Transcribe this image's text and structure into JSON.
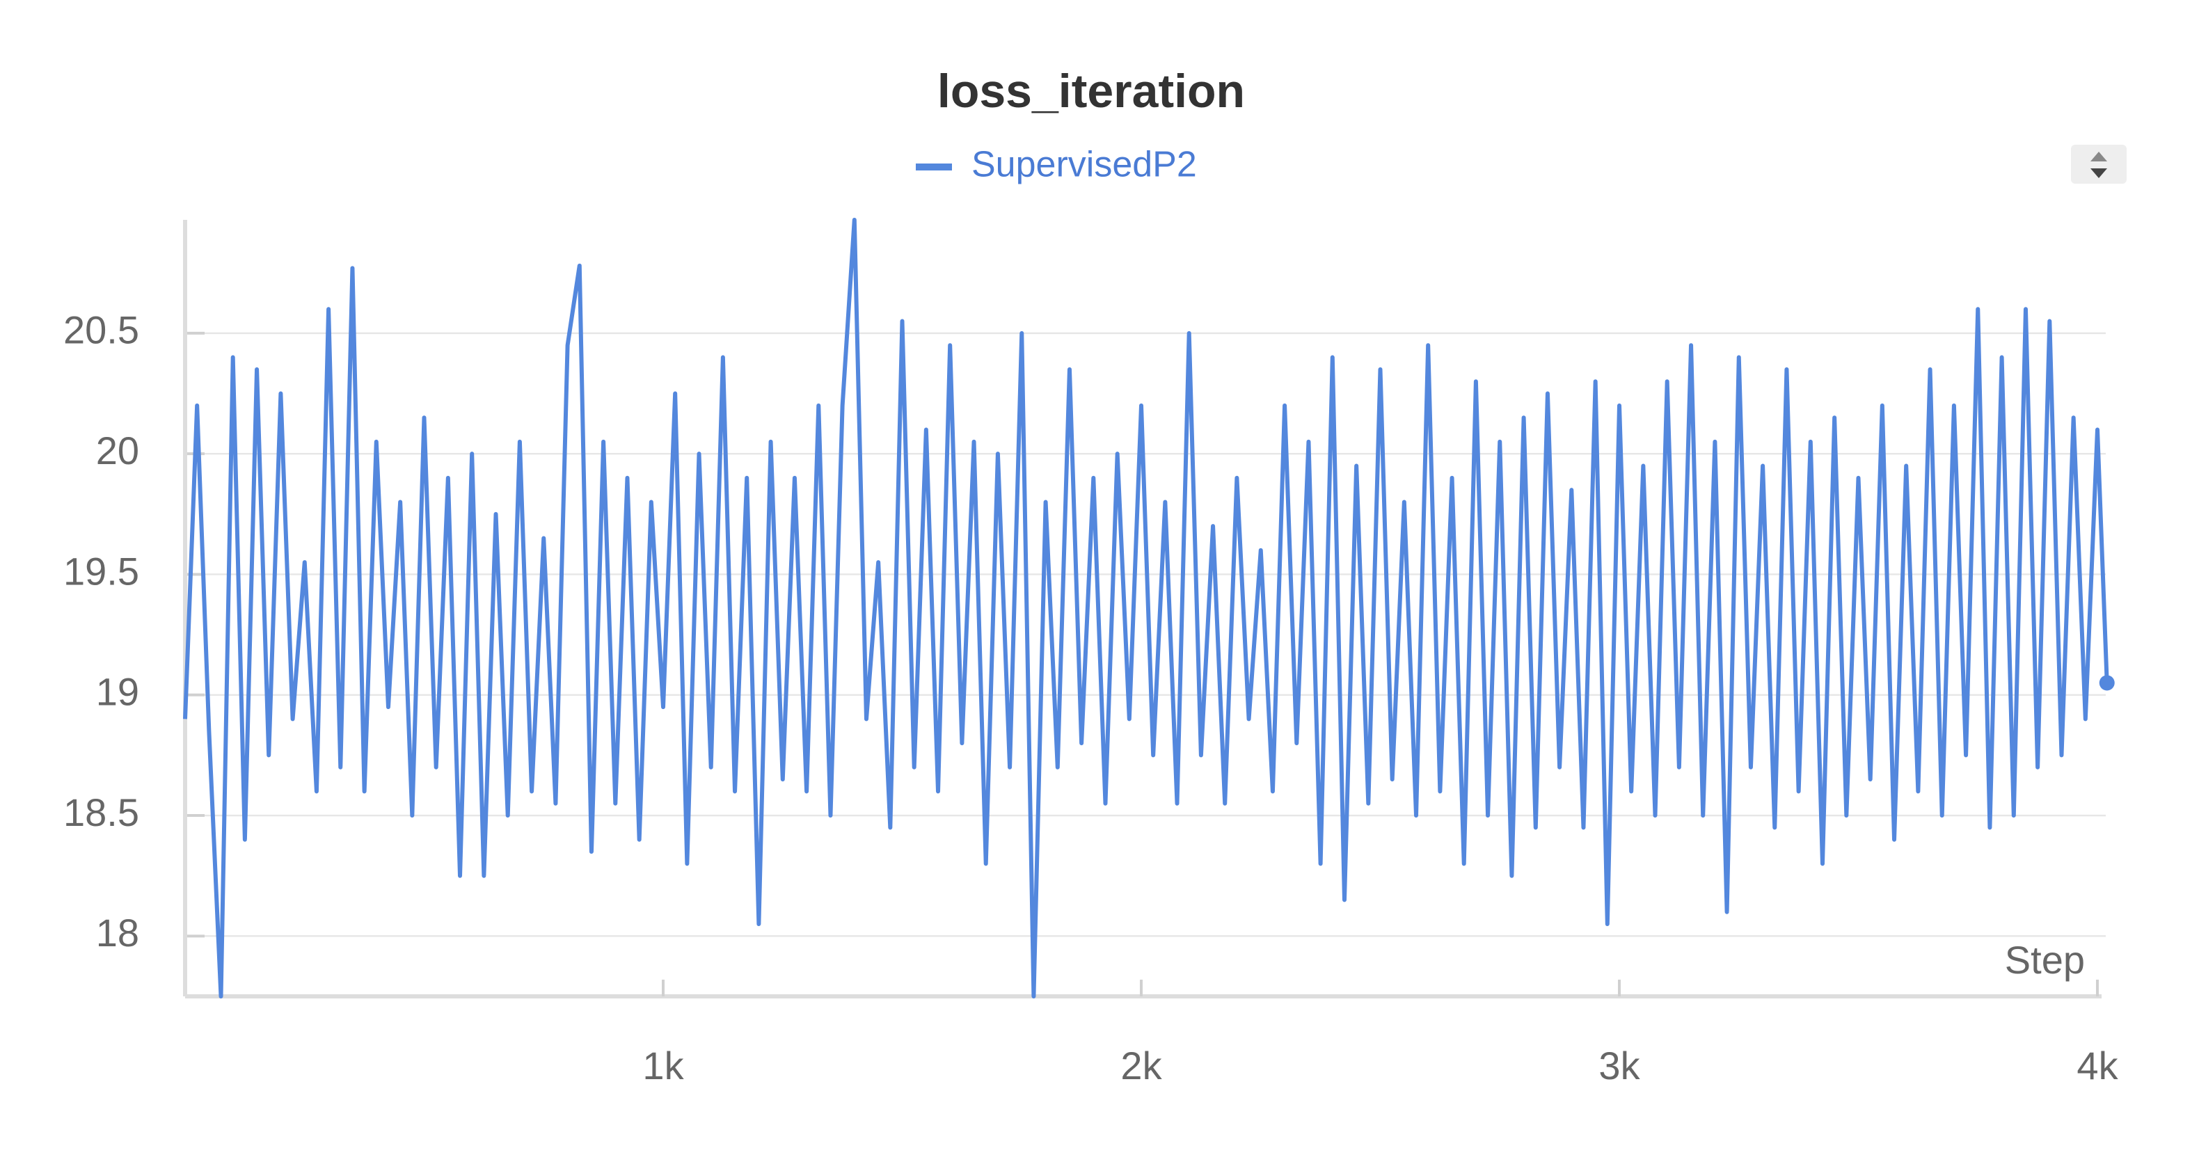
{
  "chart_data": {
    "type": "line",
    "title": "loss_iteration",
    "x_label": "Step",
    "x": [
      0,
      25,
      50,
      75,
      100,
      125,
      150,
      175,
      200,
      225,
      250,
      275,
      300,
      325,
      350,
      375,
      400,
      425,
      450,
      475,
      500,
      525,
      550,
      575,
      600,
      625,
      650,
      675,
      700,
      725,
      750,
      775,
      800,
      825,
      850,
      875,
      900,
      925,
      950,
      975,
      1000,
      1025,
      1050,
      1075,
      1100,
      1125,
      1150,
      1175,
      1200,
      1225,
      1250,
      1275,
      1300,
      1325,
      1350,
      1375,
      1400,
      1425,
      1450,
      1475,
      1500,
      1525,
      1550,
      1575,
      1600,
      1625,
      1650,
      1675,
      1700,
      1725,
      1750,
      1775,
      1800,
      1825,
      1850,
      1875,
      1900,
      1925,
      1950,
      1975,
      2000,
      2025,
      2050,
      2075,
      2100,
      2125,
      2150,
      2175,
      2200,
      2225,
      2250,
      2275,
      2300,
      2325,
      2350,
      2375,
      2400,
      2425,
      2450,
      2475,
      2500,
      2525,
      2550,
      2575,
      2600,
      2625,
      2650,
      2675,
      2700,
      2725,
      2750,
      2775,
      2800,
      2825,
      2850,
      2875,
      2900,
      2925,
      2950,
      2975,
      3000,
      3025,
      3050,
      3075,
      3100,
      3125,
      3150,
      3175,
      3200,
      3225,
      3250,
      3275,
      3300,
      3325,
      3350,
      3375,
      3400,
      3425,
      3450,
      3475,
      3500,
      3525,
      3550,
      3575,
      3600,
      3625,
      3650,
      3675,
      3700,
      3725,
      3750,
      3775,
      3800,
      3825,
      3850,
      3875,
      3900,
      3925,
      3950,
      3975,
      4000,
      4020
    ],
    "series": [
      {
        "name": "SupervisedP2",
        "color": "#5387dd",
        "values": [
          18.9,
          20.2,
          18.85,
          17.75,
          20.4,
          18.4,
          20.35,
          18.75,
          20.25,
          18.9,
          19.55,
          18.6,
          20.6,
          18.7,
          20.77,
          18.6,
          20.05,
          18.95,
          19.8,
          18.5,
          20.15,
          18.7,
          19.9,
          18.25,
          20.0,
          18.25,
          19.75,
          18.5,
          20.05,
          18.6,
          19.65,
          18.55,
          20.45,
          20.78,
          18.35,
          20.05,
          18.55,
          19.9,
          18.4,
          19.8,
          18.95,
          20.25,
          18.3,
          20.0,
          18.7,
          20.4,
          18.6,
          19.9,
          18.05,
          20.05,
          18.65,
          19.9,
          18.6,
          20.2,
          18.5,
          20.2,
          20.97,
          18.9,
          19.55,
          18.45,
          20.55,
          18.7,
          20.1,
          18.6,
          20.45,
          18.8,
          20.05,
          18.3,
          20.0,
          18.7,
          20.5,
          17.75,
          19.8,
          18.7,
          20.35,
          18.8,
          19.9,
          18.55,
          20.0,
          18.9,
          20.2,
          18.75,
          19.8,
          18.55,
          20.5,
          18.75,
          19.7,
          18.55,
          19.9,
          18.9,
          19.6,
          18.6,
          20.2,
          18.8,
          20.05,
          18.3,
          20.4,
          18.15,
          19.95,
          18.55,
          20.35,
          18.65,
          19.8,
          18.5,
          20.45,
          18.6,
          19.9,
          18.3,
          20.3,
          18.5,
          20.05,
          18.25,
          20.15,
          18.45,
          20.25,
          18.7,
          19.85,
          18.45,
          20.3,
          18.05,
          20.2,
          18.6,
          19.95,
          18.5,
          20.3,
          18.7,
          20.45,
          18.5,
          20.05,
          18.1,
          20.4,
          18.7,
          19.95,
          18.45,
          20.35,
          18.6,
          20.05,
          18.3,
          20.15,
          18.5,
          19.9,
          18.65,
          20.2,
          18.4,
          19.95,
          18.6,
          20.35,
          18.5,
          20.2,
          18.75,
          20.6,
          18.45,
          20.4,
          18.5,
          20.6,
          18.7,
          20.55,
          18.75,
          20.15,
          18.9,
          20.1,
          19.05
        ]
      }
    ],
    "xlim": [
      0,
      4030
    ],
    "ylim": [
      17.75,
      20.97
    ],
    "xticks": [
      {
        "value": 1000,
        "label": "1k"
      },
      {
        "value": 2000,
        "label": "2k"
      },
      {
        "value": 3000,
        "label": "3k"
      },
      {
        "value": 4000,
        "label": "4k"
      }
    ],
    "yticks": [
      18,
      18.5,
      19,
      19.5,
      20,
      20.5
    ],
    "grid": true
  }
}
